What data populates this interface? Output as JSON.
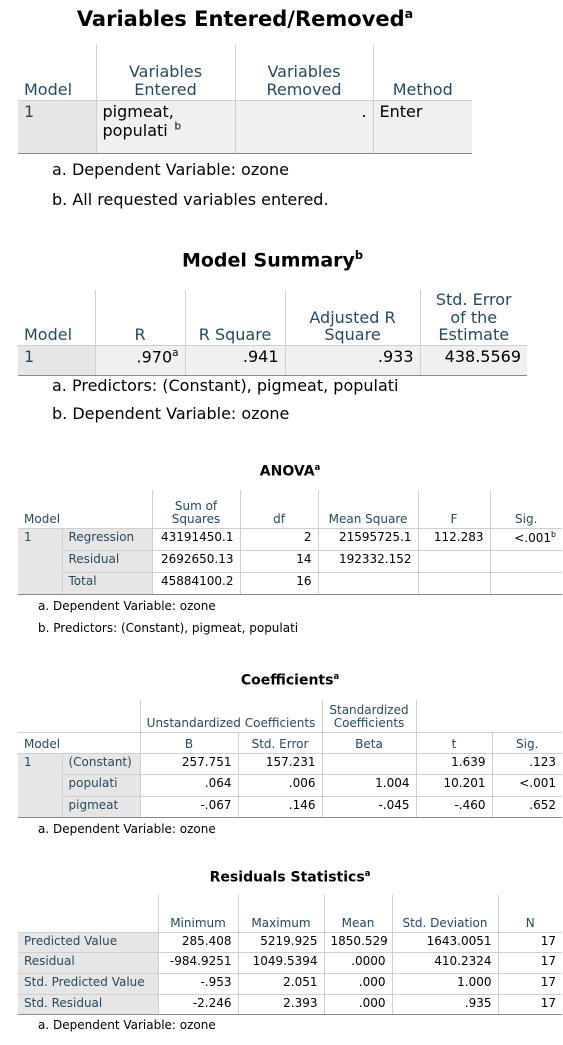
{
  "tables": [
    {
      "title": "Variables Entered/Removed",
      "title_note": "a",
      "columns": [
        "Model",
        "Variables Entered",
        "Variables Removed",
        "Method"
      ],
      "model": "1",
      "rows": [
        {
          "values": [
            {
              "text": "pigmeat, populati",
              "note": "b"
            },
            ".",
            "Enter"
          ]
        }
      ],
      "footnotes": [
        "a. Dependent Variable: ozone",
        "b. All requested variables entered."
      ]
    },
    {
      "title": "Model Summary",
      "title_note": "b",
      "columns": [
        "Model",
        "R",
        "R Square",
        "Adjusted R Square",
        "Std. Error of the Estimate"
      ],
      "model": "1",
      "rows": [
        {
          "values": [
            {
              "text": ".970",
              "note": "a"
            },
            ".941",
            ".933",
            "438.5569"
          ]
        }
      ],
      "footnotes": [
        "a. Predictors: (Constant), pigmeat, populati",
        "b. Dependent Variable: ozone"
      ]
    },
    {
      "title": "ANOVA",
      "title_note": "a",
      "columns": [
        "Model",
        "Sum of Squares",
        "df",
        "Mean Square",
        "F",
        "Sig."
      ],
      "model": "1",
      "rows": [
        {
          "label": "Regression",
          "values": [
            "43191450.1",
            "2",
            "21595725.1",
            "112.283",
            {
              "text": "<.001",
              "note": "b"
            }
          ]
        },
        {
          "label": "Residual",
          "values": [
            "2692650.13",
            "14",
            "192332.152"
          ]
        },
        {
          "label": "Total",
          "values": [
            "45884100.2",
            "16"
          ]
        }
      ],
      "footnotes": [
        "a. Dependent Variable: ozone",
        "b. Predictors: (Constant), pigmeat, populati"
      ]
    },
    {
      "title": "Coefficients",
      "title_note": "a",
      "group_headers": [
        "Unstandardized Coefficients",
        "Standardized Coefficients"
      ],
      "columns": [
        "Model",
        "B",
        "Std. Error",
        "Beta",
        "t",
        "Sig."
      ],
      "model": "1",
      "rows": [
        {
          "label": "(Constant)",
          "values": [
            "257.751",
            "157.231",
            null,
            "1.639",
            ".123"
          ]
        },
        {
          "label": "populati",
          "values": [
            ".064",
            ".006",
            "1.004",
            "10.201",
            "<.001"
          ]
        },
        {
          "label": "pigmeat",
          "values": [
            "-.067",
            ".146",
            "-.045",
            "-.460",
            ".652"
          ]
        }
      ],
      "footnotes": [
        "a. Dependent Variable: ozone"
      ]
    },
    {
      "title": "Residuals Statistics",
      "title_note": "a",
      "columns": [
        "Minimum",
        "Maximum",
        "Mean",
        "Std. Deviation",
        "N"
      ],
      "rows": [
        {
          "label": "Predicted Value",
          "values": [
            "285.408",
            "5219.925",
            "1850.529",
            "1643.0051",
            "17"
          ]
        },
        {
          "label": "Residual",
          "values": [
            "-984.9251",
            "1049.5394",
            ".0000",
            "410.2324",
            "17"
          ]
        },
        {
          "label": "Std. Predicted Value",
          "values": [
            "-.953",
            "2.051",
            ".000",
            "1.000",
            "17"
          ]
        },
        {
          "label": "Std. Residual",
          "values": [
            "-2.246",
            "2.393",
            ".000",
            ".935",
            "17"
          ]
        }
      ],
      "footnotes": [
        "a. Dependent Variable: ozone"
      ]
    }
  ]
}
